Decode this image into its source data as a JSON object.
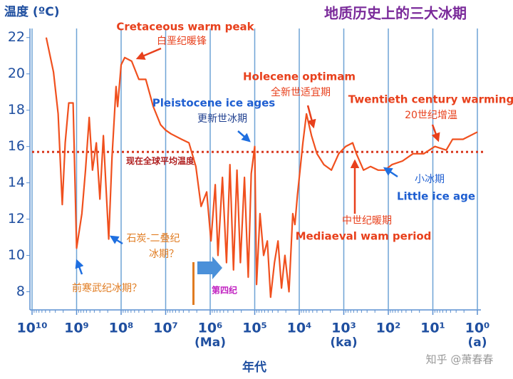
{
  "chart_data": {
    "type": "line",
    "title": "地质历史上的三大冰期",
    "y_label": "温度 (ºC)",
    "x_label": "年代",
    "watermark": "知乎 @萧春春",
    "x_scale": "log",
    "xlim": [
      10000000000,
      1
    ],
    "ylim": [
      7,
      22.5
    ],
    "yticks": [
      8,
      10,
      12,
      14,
      16,
      18,
      20,
      22
    ],
    "xticks": [
      {
        "value": 10000000000,
        "label": "10¹⁰"
      },
      {
        "value": 1000000000,
        "label": "10⁹"
      },
      {
        "value": 100000000,
        "label": "10⁸"
      },
      {
        "value": 10000000,
        "label": "10⁷"
      },
      {
        "value": 1000000,
        "label": "10⁶"
      },
      {
        "value": 100000,
        "label": "10⁵"
      },
      {
        "value": 10000,
        "label": "10⁴"
      },
      {
        "value": 1000,
        "label": "10³"
      },
      {
        "value": 100,
        "label": "10²"
      },
      {
        "value": 10,
        "label": "10¹"
      },
      {
        "value": 1,
        "label": "10⁰"
      }
    ],
    "x_unit_labels": [
      "(Ma)",
      "(ka)",
      "(a)"
    ],
    "grid": true,
    "series": [
      {
        "color": "#f0501e",
        "x": [
          4800000000,
          3300000000,
          2600000000,
          2100000000,
          1800000000,
          1500000000,
          1200000000,
          1000000000,
          760000000,
          630000000,
          520000000,
          440000000,
          360000000,
          300000000,
          250000000,
          220000000,
          190000000,
          160000000,
          130000000,
          120000000,
          100000000,
          83000000,
          58000000,
          40000000,
          28000000,
          19000000,
          13000000,
          10000000,
          7600000,
          4400000,
          3000000,
          2100000,
          1600000,
          1200000,
          960000,
          770000,
          670000,
          530000,
          430000,
          360000,
          300000,
          250000,
          210000,
          170000,
          140000,
          120000,
          100000,
          91000,
          76000,
          63000,
          52000,
          44000,
          36000,
          30000,
          25000,
          21000,
          17000,
          14000,
          12500,
          11000,
          8300,
          6900,
          5300,
          4000,
          2800,
          1900,
          1300,
          910,
          630,
          520,
          360,
          250,
          170,
          120,
          83,
          48,
          28,
          16,
          9,
          5,
          3.6,
          2.1,
          1
        ],
        "values": [
          22,
          20.1,
          17.8,
          12.8,
          16.2,
          18.4,
          18.4,
          10.4,
          12.3,
          14.7,
          17.6,
          14.7,
          16.2,
          13.1,
          16.6,
          13.9,
          10.9,
          15.4,
          19.3,
          18.2,
          20.5,
          20.9,
          20.7,
          19.7,
          19.7,
          18.2,
          17.2,
          16.9,
          16.7,
          16.4,
          16.2,
          14.9,
          12.7,
          13.5,
          10.8,
          13.9,
          10.0,
          14.3,
          9.6,
          15.0,
          9.2,
          14.7,
          9.6,
          14.3,
          8.8,
          14.5,
          16.0,
          8.4,
          12.3,
          10.0,
          10.8,
          7.7,
          9.6,
          10.8,
          8.2,
          10.0,
          8.0,
          12.3,
          11.7,
          13.3,
          16.2,
          17.8,
          16.6,
          15.6,
          15.0,
          14.7,
          15.6,
          16.0,
          16.2,
          15.6,
          14.7,
          14.9,
          14.7,
          14.7,
          15.0,
          15.2,
          15.6,
          15.6,
          16.0,
          15.8,
          16.4,
          16.4,
          16.8
        ]
      }
    ],
    "reference_line": {
      "value": 15.7,
      "label": "现在全球平均温度",
      "color": "#d9381e"
    },
    "annotations": [
      {
        "text": "Cretaceous warm peak",
        "color": "#e8401c"
      },
      {
        "text": "白垩纪暖锋",
        "color": "#e8401c"
      },
      {
        "text": "Pleistocene ice ages",
        "color": "#1f5fd1"
      },
      {
        "text": "更新世冰期",
        "color": "#1f3f8f"
      },
      {
        "text": "Holecene optimam",
        "color": "#e8401c"
      },
      {
        "text": "全新世适宜期",
        "color": "#e8401c"
      },
      {
        "text": "Twentieth century warming",
        "color": "#e8401c"
      },
      {
        "text": "20世纪增温",
        "color": "#e8401c"
      },
      {
        "text": "小冰期",
        "color": "#1f5fd1"
      },
      {
        "text": "Little ice age",
        "color": "#1f5fd1"
      },
      {
        "text": "中世纪暖期",
        "color": "#e8401c"
      },
      {
        "text": "Mediaeval wam period",
        "color": "#e8401c"
      },
      {
        "text": "石炭-二叠纪",
        "color": "#e07b20"
      },
      {
        "text": "冰期？",
        "color": "#e07b20"
      },
      {
        "text": "前寒武纪冰期？",
        "color": "#e07b20"
      },
      {
        "text": "第四纪",
        "color": "#c020c0"
      }
    ]
  }
}
